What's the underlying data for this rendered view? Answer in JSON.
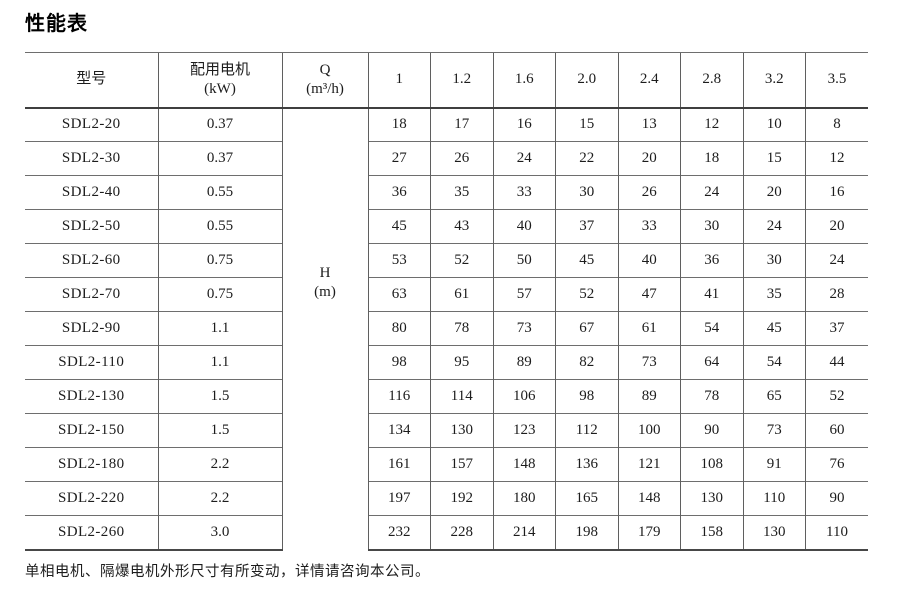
{
  "page": {
    "title": "性能表",
    "footer_note": "单相电机、隔爆电机外形尺寸有所变动，详情请咨询本公司。"
  },
  "table": {
    "model_header": "型号",
    "motor_header_line1": "配用电机",
    "motor_header_line2": "(kW)",
    "flow_symbol": "Q",
    "flow_unit": "(m³/h)",
    "flow_values": [
      "1",
      "1.2",
      "1.6",
      "2.0",
      "2.4",
      "2.8",
      "3.2",
      "3.5"
    ],
    "head_symbol": "H",
    "head_unit": "(m)",
    "rows": [
      {
        "model": "SDL2-20",
        "power": "0.37",
        "heads": [
          "18",
          "17",
          "16",
          "15",
          "13",
          "12",
          "10",
          "8"
        ]
      },
      {
        "model": "SDL2-30",
        "power": "0.37",
        "heads": [
          "27",
          "26",
          "24",
          "22",
          "20",
          "18",
          "15",
          "12"
        ]
      },
      {
        "model": "SDL2-40",
        "power": "0.55",
        "heads": [
          "36",
          "35",
          "33",
          "30",
          "26",
          "24",
          "20",
          "16"
        ]
      },
      {
        "model": "SDL2-50",
        "power": "0.55",
        "heads": [
          "45",
          "43",
          "40",
          "37",
          "33",
          "30",
          "24",
          "20"
        ]
      },
      {
        "model": "SDL2-60",
        "power": "0.75",
        "heads": [
          "53",
          "52",
          "50",
          "45",
          "40",
          "36",
          "30",
          "24"
        ]
      },
      {
        "model": "SDL2-70",
        "power": "0.75",
        "heads": [
          "63",
          "61",
          "57",
          "52",
          "47",
          "41",
          "35",
          "28"
        ]
      },
      {
        "model": "SDL2-90",
        "power": "1.1",
        "heads": [
          "80",
          "78",
          "73",
          "67",
          "61",
          "54",
          "45",
          "37"
        ]
      },
      {
        "model": "SDL2-110",
        "power": "1.1",
        "heads": [
          "98",
          "95",
          "89",
          "82",
          "73",
          "64",
          "54",
          "44"
        ]
      },
      {
        "model": "SDL2-130",
        "power": "1.5",
        "heads": [
          "116",
          "114",
          "106",
          "98",
          "89",
          "78",
          "65",
          "52"
        ]
      },
      {
        "model": "SDL2-150",
        "power": "1.5",
        "heads": [
          "134",
          "130",
          "123",
          "112",
          "100",
          "90",
          "73",
          "60"
        ]
      },
      {
        "model": "SDL2-180",
        "power": "2.2",
        "heads": [
          "161",
          "157",
          "148",
          "136",
          "121",
          "108",
          "91",
          "76"
        ]
      },
      {
        "model": "SDL2-220",
        "power": "2.2",
        "heads": [
          "197",
          "192",
          "180",
          "165",
          "148",
          "130",
          "110",
          "90"
        ]
      },
      {
        "model": "SDL2-260",
        "power": "3.0",
        "heads": [
          "232",
          "228",
          "214",
          "198",
          "179",
          "158",
          "130",
          "110"
        ]
      }
    ]
  }
}
